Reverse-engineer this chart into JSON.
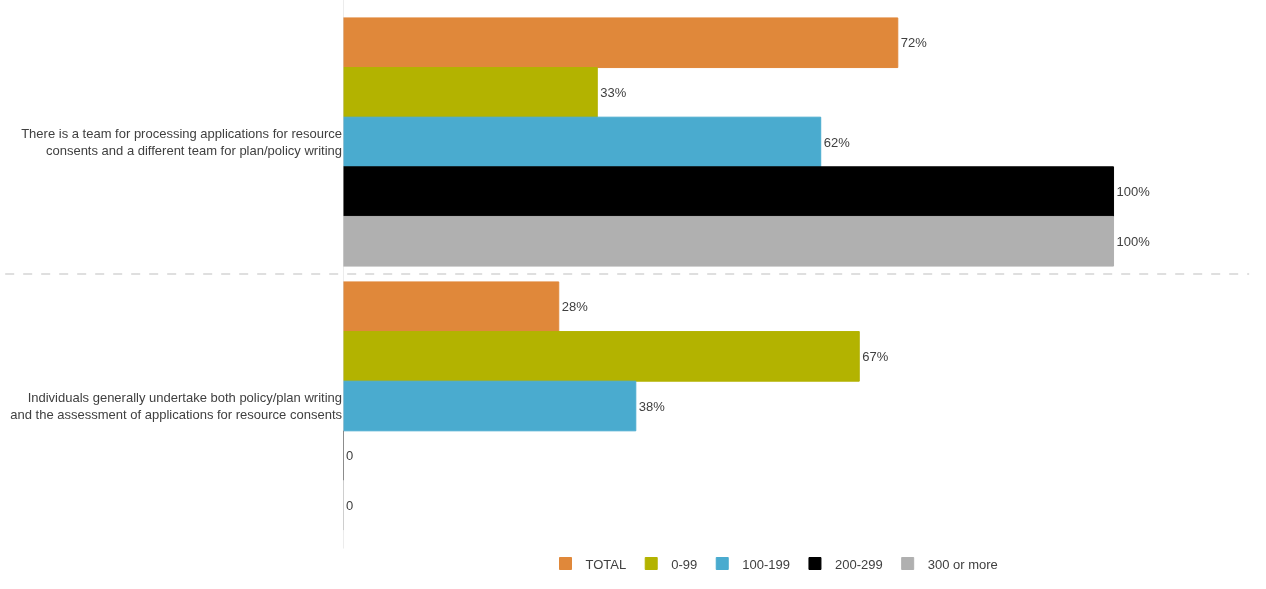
{
  "chart_data": {
    "type": "bar",
    "orientation": "horizontal",
    "grid": "y",
    "legend": "bottom",
    "tick_labels": "y",
    "categories": [
      "There is a team for processing applications for resource consents and a different team for plan/policy writing",
      "Individuals generally undertake both policy/plan writing and the assessment of applications for resource consents"
    ],
    "series": [
      {
        "name": "TOTAL",
        "color": "#e0883a",
        "values": [
          72,
          28
        ],
        "value_labels": [
          "72%",
          "28%"
        ]
      },
      {
        "name": "0-99",
        "color": "#b3b300",
        "values": [
          33,
          67
        ],
        "value_labels": [
          "33%",
          "67%"
        ]
      },
      {
        "name": "100-199",
        "color": "#4aabcf",
        "values": [
          62,
          38
        ],
        "value_labels": [
          "62%",
          "38%"
        ]
      },
      {
        "name": "200-299",
        "color": "#000000",
        "values": [
          100,
          0
        ],
        "value_labels": [
          "100%",
          "0"
        ]
      },
      {
        "name": "300 or more",
        "color": "#b0b0b0",
        "values": [
          100,
          0
        ],
        "value_labels": [
          "100%",
          "0"
        ]
      }
    ]
  }
}
